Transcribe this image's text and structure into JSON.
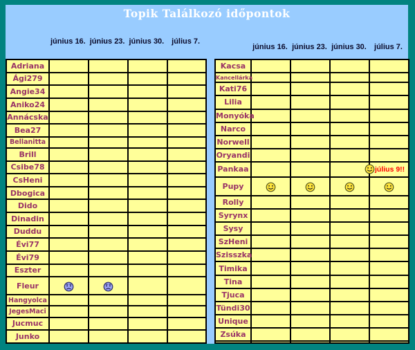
{
  "title": "Topik Találkozó időpontok",
  "date_headers": [
    "június 16.",
    "június 23.",
    "június 30.",
    "július 7."
  ],
  "colors": {
    "frame_teal": "#018380",
    "page_blue": "#99CCFF",
    "table_yellow": "#FFFF99",
    "name_maroon": "#993366",
    "header_navy": "#0a0a2a",
    "note_red": "#FF0000",
    "title_white": "#FFFFFF",
    "smiley_yellow": "#FFE53B",
    "sad_smiley_blue": "#9AA2F2"
  },
  "left_table": {
    "rows": [
      {
        "name": "Adriana",
        "cells": [
          null,
          null,
          null,
          null
        ]
      },
      {
        "name": "Ági279",
        "cells": [
          null,
          null,
          null,
          null
        ]
      },
      {
        "name": "Angie34",
        "cells": [
          null,
          null,
          null,
          null
        ]
      },
      {
        "name": "Aniko24",
        "cells": [
          null,
          null,
          null,
          null
        ]
      },
      {
        "name": "Annácska",
        "cells": [
          null,
          null,
          null,
          null
        ]
      },
      {
        "name": "Bea27",
        "cells": [
          null,
          null,
          null,
          null
        ]
      },
      {
        "name": "Bellanitta",
        "cells": [
          null,
          null,
          null,
          null
        ]
      },
      {
        "name": "Brill",
        "cells": [
          null,
          null,
          null,
          null
        ]
      },
      {
        "name": "Csibe78",
        "cells": [
          null,
          null,
          null,
          null
        ]
      },
      {
        "name": "CsHeni",
        "cells": [
          null,
          null,
          null,
          null
        ]
      },
      {
        "name": "Dbogica",
        "cells": [
          null,
          null,
          null,
          null
        ]
      },
      {
        "name": "Dido",
        "cells": [
          null,
          null,
          null,
          null
        ]
      },
      {
        "name": "Dinadin",
        "cells": [
          null,
          null,
          null,
          null
        ]
      },
      {
        "name": "Duddu",
        "cells": [
          null,
          null,
          null,
          null
        ]
      },
      {
        "name": "Évi77",
        "cells": [
          null,
          null,
          null,
          null
        ]
      },
      {
        "name": "Évi79",
        "cells": [
          null,
          null,
          null,
          null
        ]
      },
      {
        "name": "Eszter",
        "cells": [
          null,
          null,
          null,
          null
        ]
      },
      {
        "name": "Fleur",
        "cells": [
          {
            "icon": "sad-smiley"
          },
          {
            "icon": "sad-smiley"
          },
          null,
          null
        ]
      },
      {
        "name": "Hangyolca",
        "cells": [
          null,
          null,
          null,
          null
        ]
      },
      {
        "name": "JegesMaci",
        "cells": [
          null,
          null,
          null,
          null
        ]
      },
      {
        "name": "Jucmuc",
        "cells": [
          null,
          null,
          null,
          null
        ]
      },
      {
        "name": "Junko",
        "cells": [
          null,
          null,
          null,
          null
        ]
      }
    ]
  },
  "right_table": {
    "rows": [
      {
        "name": "Kacsa",
        "cells": [
          null,
          null,
          null,
          null
        ]
      },
      {
        "name": "Kancellárka",
        "cells": [
          null,
          null,
          null,
          null
        ]
      },
      {
        "name": "Kati76",
        "cells": [
          null,
          null,
          null,
          null
        ]
      },
      {
        "name": "Lilia",
        "cells": [
          null,
          null,
          null,
          null
        ]
      },
      {
        "name": "Monyóka",
        "cells": [
          null,
          null,
          null,
          null
        ]
      },
      {
        "name": "Narco",
        "cells": [
          null,
          null,
          null,
          null
        ]
      },
      {
        "name": "Norwell",
        "cells": [
          null,
          null,
          null,
          null
        ]
      },
      {
        "name": "Oryandi",
        "cells": [
          null,
          null,
          null,
          null
        ]
      },
      {
        "name": "Pankaa",
        "cells": [
          null,
          null,
          null,
          {
            "icon": "smiley",
            "label": "július 9!!"
          }
        ]
      },
      {
        "name": "Pupy",
        "cells": [
          {
            "icon": "smiley"
          },
          {
            "icon": "smiley"
          },
          {
            "icon": "smiley"
          },
          {
            "icon": "smiley"
          }
        ]
      },
      {
        "name": "Rolly",
        "cells": [
          null,
          null,
          null,
          null
        ]
      },
      {
        "name": "Syrynx",
        "cells": [
          null,
          null,
          null,
          null
        ]
      },
      {
        "name": "Sysy",
        "cells": [
          null,
          null,
          null,
          null
        ]
      },
      {
        "name": "SzHeni",
        "cells": [
          null,
          null,
          null,
          null
        ]
      },
      {
        "name": "Szisszka",
        "cells": [
          null,
          null,
          null,
          null
        ]
      },
      {
        "name": "Timika",
        "cells": [
          null,
          null,
          null,
          null
        ]
      },
      {
        "name": "Tina",
        "cells": [
          null,
          null,
          null,
          null
        ]
      },
      {
        "name": "Tjuca",
        "cells": [
          null,
          null,
          null,
          null
        ]
      },
      {
        "name": "Tündi30",
        "cells": [
          null,
          null,
          null,
          null
        ]
      },
      {
        "name": "Unique",
        "cells": [
          null,
          null,
          null,
          null
        ]
      },
      {
        "name": "Zsúka",
        "cells": [
          null,
          null,
          null,
          null
        ]
      },
      {
        "name": "",
        "cells": [
          null,
          null,
          null,
          null
        ]
      }
    ]
  }
}
